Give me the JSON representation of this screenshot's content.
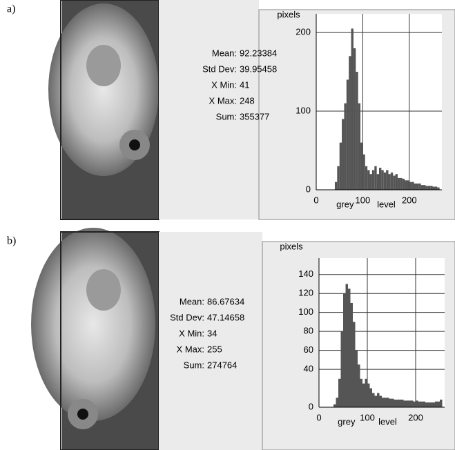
{
  "chart_data": [
    {
      "type": "histogram",
      "panel": "a)",
      "y_label": "pixels",
      "x_label": "grey level",
      "stats": [
        {
          "label": "Mean:",
          "value": 92.23384
        },
        {
          "label": "Std Dev:",
          "value": 39.95458
        },
        {
          "label": "X Min:",
          "value": 41
        },
        {
          "label": "X Max:",
          "value": 248
        },
        {
          "label": "Sum:",
          "value": 355377
        }
      ],
      "bins": [
        40,
        45,
        50,
        55,
        60,
        65,
        70,
        75,
        80,
        85,
        90,
        95,
        100,
        105,
        110,
        115,
        120,
        125,
        130,
        135,
        140,
        145,
        150,
        155,
        160,
        165,
        170,
        175,
        180,
        185,
        190,
        195,
        200,
        205,
        210,
        215,
        220,
        225,
        230,
        235,
        240,
        245,
        250,
        255,
        260,
        265
      ],
      "values": [
        10,
        30,
        60,
        90,
        110,
        140,
        170,
        205,
        180,
        150,
        110,
        60,
        45,
        30,
        25,
        20,
        25,
        30,
        20,
        28,
        25,
        22,
        25,
        20,
        22,
        18,
        20,
        15,
        15,
        14,
        12,
        12,
        10,
        10,
        8,
        8,
        8,
        6,
        6,
        5,
        5,
        5,
        4,
        4,
        3
      ],
      "color": "#555555",
      "xlim": [
        0,
        270
      ],
      "ylim": [
        0,
        215
      ],
      "xticks": [
        0,
        100,
        200
      ],
      "yticks": [
        0,
        100,
        200
      ],
      "grid": true
    },
    {
      "type": "histogram",
      "panel": "b)",
      "y_label": "pixels",
      "x_label": "grey level",
      "stats": [
        {
          "label": "Mean:",
          "value": 86.67634
        },
        {
          "label": "Std Dev:",
          "value": 47.14658
        },
        {
          "label": "X Min:",
          "value": 34
        },
        {
          "label": "X Max:",
          "value": 255
        },
        {
          "label": "Sum:",
          "value": 274764
        }
      ],
      "bins": [
        30,
        35,
        40,
        45,
        50,
        55,
        60,
        65,
        70,
        75,
        80,
        85,
        90,
        95,
        100,
        105,
        110,
        115,
        120,
        125,
        130,
        135,
        140,
        145,
        150,
        155,
        160,
        165,
        170,
        175,
        180,
        185,
        190,
        195,
        200,
        205,
        210,
        215,
        220,
        225,
        230,
        235,
        240,
        245,
        250,
        255
      ],
      "values": [
        3,
        10,
        30,
        80,
        120,
        130,
        125,
        110,
        90,
        60,
        45,
        30,
        25,
        30,
        25,
        20,
        15,
        12,
        15,
        12,
        10,
        10,
        10,
        9,
        9,
        8,
        8,
        8,
        8,
        7,
        7,
        7,
        7,
        6,
        7,
        6,
        6,
        6,
        5,
        5,
        5,
        5,
        6,
        6,
        8
      ],
      "color": "#555555",
      "xlim": [
        0,
        260
      ],
      "ylim": [
        0,
        150
      ],
      "xticks": [
        0,
        100,
        200
      ],
      "yticks": [
        0,
        40,
        60,
        80,
        100,
        120,
        140
      ],
      "grid": true
    }
  ]
}
